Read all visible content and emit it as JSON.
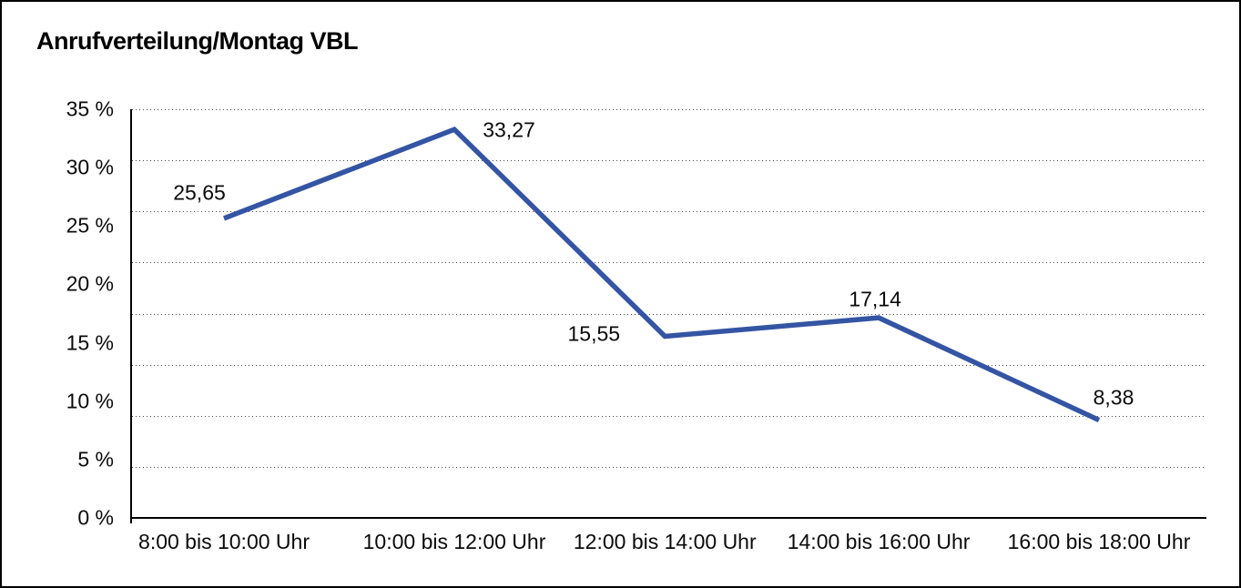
{
  "chart_data": {
    "type": "line",
    "title": "Anrufverteilung/Montag VBL",
    "categories": [
      "8:00 bis 10:00 Uhr",
      "10:00 bis 12:00 Uhr",
      "12:00 bis 14:00 Uhr",
      "14:00 bis 16:00 Uhr",
      "16:00 bis 18:00 Uhr"
    ],
    "values": [
      25.65,
      33.27,
      15.55,
      17.14,
      8.38
    ],
    "point_labels": [
      "25,65",
      "33,27",
      "15,55",
      "17,14",
      "8,38"
    ],
    "y_tick_labels": [
      "35 %",
      "30 %",
      "25 %",
      "20 %",
      "15 %",
      "10 %",
      "5 %",
      "0 %"
    ],
    "ylim": [
      0,
      35
    ],
    "xlabel": "",
    "ylabel": "",
    "grid": "horizontal-dotted",
    "legend": "none",
    "line_color": "#3454A4"
  }
}
